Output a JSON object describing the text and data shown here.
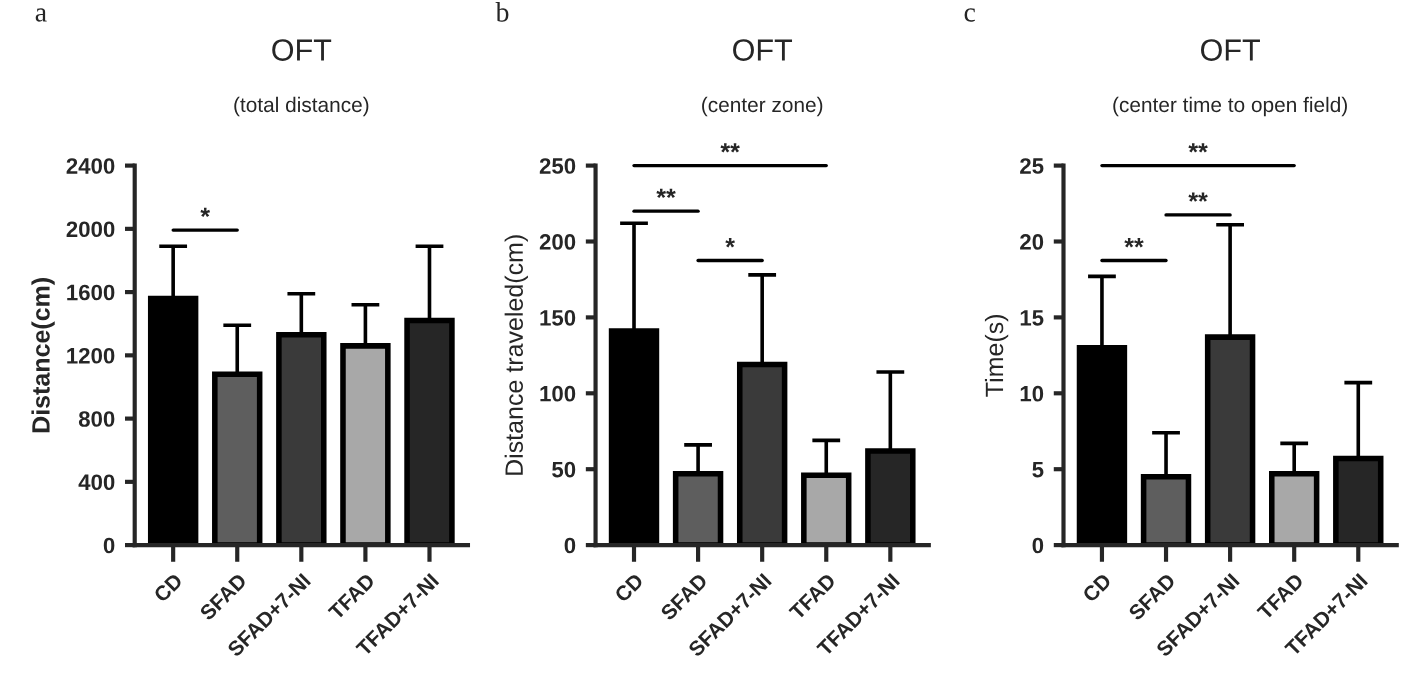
{
  "chart_data": [
    {
      "type": "bar",
      "title": "OFT",
      "subtitle": "(total distance)",
      "ylabel": "Distance(cm)",
      "categories": [
        "CD",
        "SFAD",
        "SFAD+7-NI",
        "TFAD",
        "TFAD+7-NI"
      ],
      "values": [
        1560,
        1080,
        1330,
        1260,
        1420
      ],
      "errors": [
        [
          1560,
          1890
        ],
        [
          1080,
          1390
        ],
        [
          1330,
          1590
        ],
        [
          1260,
          1520
        ],
        [
          1420,
          1890
        ]
      ],
      "colors": [
        "#000000",
        "#5e5e5e",
        "#3a3a3a",
        "#a8a8a8",
        "#262626"
      ],
      "ylim": [
        0,
        2400
      ],
      "yticks": [
        0,
        400,
        800,
        1200,
        1600,
        2000,
        2400
      ],
      "annotations": [
        "a",
        "*"
      ]
    },
    {
      "type": "bar",
      "title": "OFT",
      "subtitle": "(center zone)",
      "ylabel": "Distance traveled(cm)",
      "categories": [
        "CD",
        "SFAD",
        "SFAD+7-NI",
        "TFAD",
        "TFAD+7-NI"
      ],
      "values": [
        141,
        47,
        119,
        46,
        62
      ],
      "errors": [
        [
          141,
          212
        ],
        [
          47,
          66
        ],
        [
          119,
          178
        ],
        [
          46,
          69
        ],
        [
          62,
          114
        ]
      ],
      "colors": [
        "#000000",
        "#5e5e5e",
        "#3a3a3a",
        "#a8a8a8",
        "#262626"
      ],
      "ylim": [
        0,
        250
      ],
      "yticks": [
        0,
        50,
        100,
        150,
        200,
        250
      ],
      "annotations": [
        "b",
        "**",
        "*",
        "**"
      ]
    },
    {
      "type": "bar",
      "title": "OFT",
      "subtitle": "(center time to open field)",
      "ylabel": "Time(s)",
      "categories": [
        "CD",
        "SFAD",
        "SFAD+7-NI",
        "TFAD",
        "TFAD+7-NI"
      ],
      "values": [
        13,
        4.5,
        13.7,
        4.7,
        5.7
      ],
      "errors": [
        [
          13,
          17.7
        ],
        [
          4.5,
          7.4
        ],
        [
          13.7,
          21.1
        ],
        [
          4.7,
          6.7
        ],
        [
          5.7,
          10.7
        ]
      ],
      "colors": [
        "#000000",
        "#5e5e5e",
        "#3a3a3a",
        "#a8a8a8",
        "#262626"
      ],
      "ylim": [
        0,
        25
      ],
      "yticks": [
        0,
        5,
        10,
        15,
        20,
        25
      ],
      "annotations": [
        "c",
        "**",
        "**",
        "**"
      ]
    }
  ]
}
